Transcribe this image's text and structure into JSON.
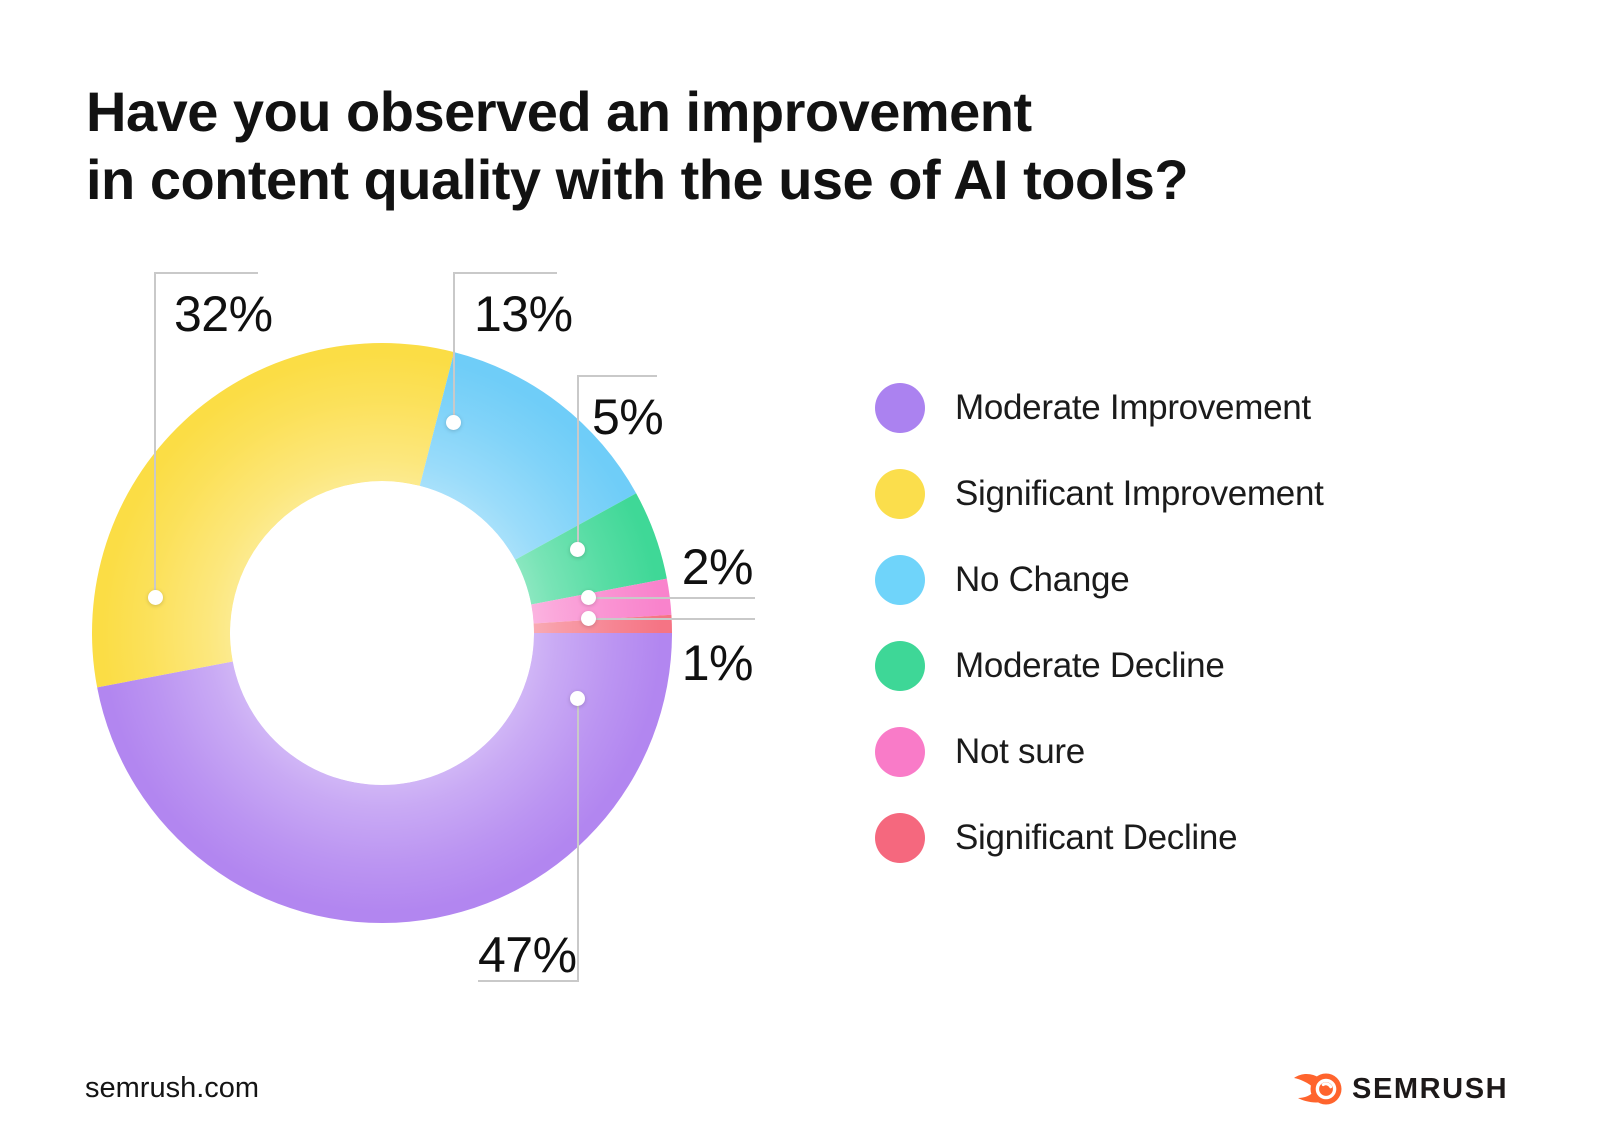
{
  "page": {
    "title_line1": "Have you observed an improvement",
    "title_line2": "in content quality with the use of AI tools?",
    "footer_url": "semrush.com",
    "brand_name": "SEMRUSH",
    "brand_color": "#FF642D"
  },
  "chart_data": {
    "type": "pie",
    "subtype": "donut",
    "title": "Have you observed an improvement in content quality with the use of AI tools?",
    "legend_position": "right",
    "start_angle_deg": 0,
    "direction": "clockwise",
    "units": "%",
    "segments": [
      {
        "label": "Moderate Improvement",
        "value": 47,
        "display": "47%",
        "legend_color": "#AB82F0",
        "slice_color": "#B286F0"
      },
      {
        "label": "Significant Improvement",
        "value": 32,
        "display": "32%",
        "legend_color": "#FBDE4C",
        "slice_color": "#FBDD45"
      },
      {
        "label": "No Change",
        "value": 13,
        "display": "13%",
        "legend_color": "#6FD4FA",
        "slice_color": "#6FCDF8"
      },
      {
        "label": "Moderate Decline",
        "value": 5,
        "display": "5%",
        "legend_color": "#3ED797",
        "slice_color": "#3FD897"
      },
      {
        "label": "Not sure",
        "value": 2,
        "display": "2%",
        "legend_color": "#F97BC8",
        "slice_color": "#F983CC"
      },
      {
        "label": "Significant Decline",
        "value": 1,
        "display": "1%",
        "legend_color": "#F5687E",
        "slice_color": "#F57484"
      }
    ],
    "callout_line_color": "#c9c9c9"
  }
}
